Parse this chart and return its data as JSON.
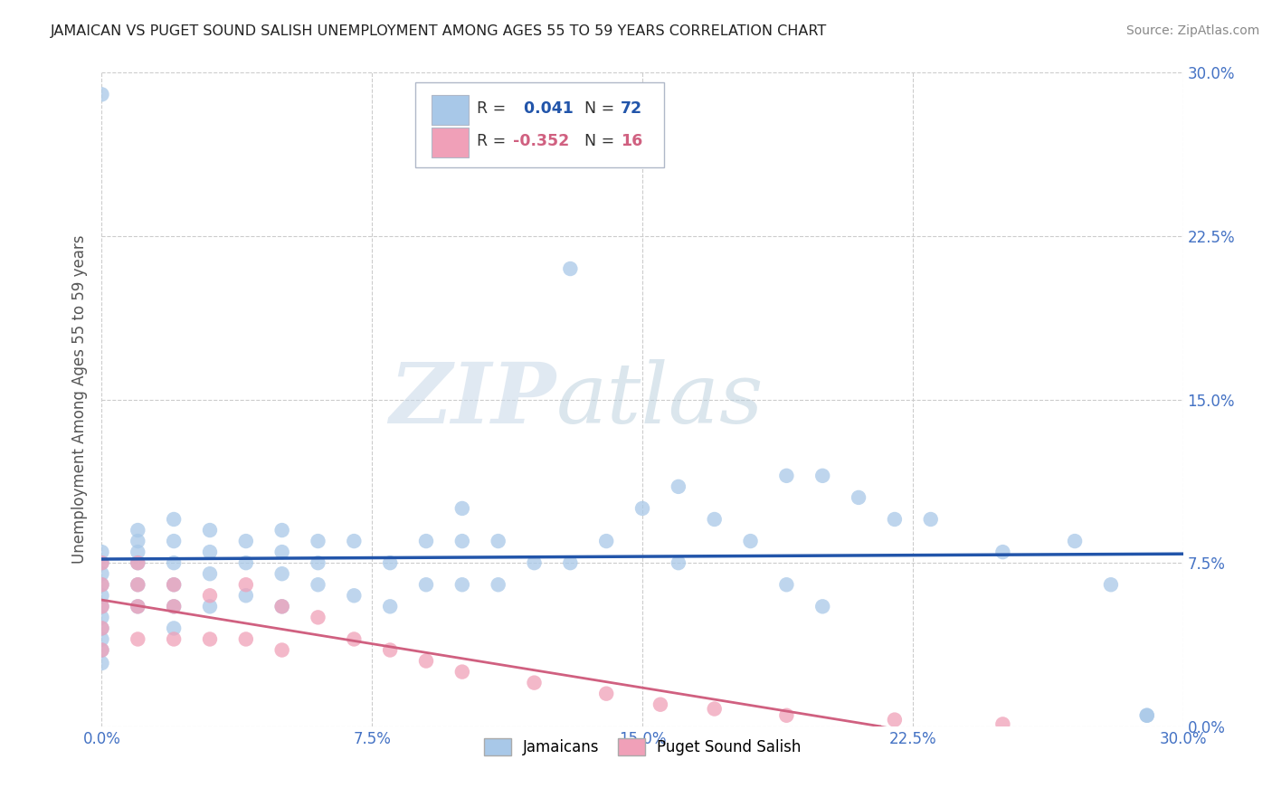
{
  "title": "JAMAICAN VS PUGET SOUND SALISH UNEMPLOYMENT AMONG AGES 55 TO 59 YEARS CORRELATION CHART",
  "source_text": "Source: ZipAtlas.com",
  "ylabel": "Unemployment Among Ages 55 to 59 years",
  "xlim": [
    0.0,
    0.3
  ],
  "ylim": [
    0.0,
    0.3
  ],
  "xticks": [
    0.0,
    0.075,
    0.15,
    0.225,
    0.3
  ],
  "xtick_labels": [
    "0.0%",
    "7.5%",
    "15.0%",
    "22.5%",
    "30.0%"
  ],
  "yticks": [
    0.0,
    0.075,
    0.15,
    0.225,
    0.3
  ],
  "ytick_labels": [
    "0.0%",
    "7.5%",
    "15.0%",
    "22.5%",
    "30.0%"
  ],
  "color_blue": "#a8c8e8",
  "color_pink": "#f0a0b8",
  "line_blue": "#2255aa",
  "line_pink": "#d06080",
  "watermark_zip": "ZIP",
  "watermark_atlas": "atlas",
  "background_color": "#ffffff",
  "jamaicans_x": [
    0.0,
    0.0,
    0.0,
    0.0,
    0.0,
    0.0,
    0.0,
    0.0,
    0.0,
    0.0,
    0.0,
    0.0,
    0.01,
    0.01,
    0.01,
    0.01,
    0.01,
    0.01,
    0.02,
    0.02,
    0.02,
    0.02,
    0.02,
    0.02,
    0.03,
    0.03,
    0.03,
    0.03,
    0.04,
    0.04,
    0.04,
    0.05,
    0.05,
    0.05,
    0.05,
    0.06,
    0.06,
    0.06,
    0.07,
    0.07,
    0.08,
    0.08,
    0.09,
    0.09,
    0.1,
    0.1,
    0.1,
    0.11,
    0.11,
    0.12,
    0.13,
    0.13,
    0.14,
    0.15,
    0.16,
    0.16,
    0.17,
    0.18,
    0.19,
    0.19,
    0.2,
    0.2,
    0.21,
    0.22,
    0.23,
    0.25,
    0.27,
    0.28,
    0.29,
    0.29
  ],
  "jamaicans_y": [
    0.08,
    0.075,
    0.07,
    0.065,
    0.06,
    0.055,
    0.05,
    0.045,
    0.04,
    0.035,
    0.029,
    0.29,
    0.09,
    0.085,
    0.08,
    0.075,
    0.065,
    0.055,
    0.095,
    0.085,
    0.075,
    0.065,
    0.055,
    0.045,
    0.09,
    0.08,
    0.07,
    0.055,
    0.085,
    0.075,
    0.06,
    0.09,
    0.08,
    0.07,
    0.055,
    0.085,
    0.075,
    0.065,
    0.085,
    0.06,
    0.075,
    0.055,
    0.085,
    0.065,
    0.1,
    0.085,
    0.065,
    0.085,
    0.065,
    0.075,
    0.21,
    0.075,
    0.085,
    0.1,
    0.11,
    0.075,
    0.095,
    0.085,
    0.115,
    0.065,
    0.115,
    0.055,
    0.105,
    0.095,
    0.095,
    0.08,
    0.085,
    0.065,
    0.005,
    0.005
  ],
  "salish_x": [
    0.0,
    0.0,
    0.0,
    0.0,
    0.0,
    0.01,
    0.01,
    0.01,
    0.01,
    0.02,
    0.02,
    0.02,
    0.03,
    0.03,
    0.04,
    0.04,
    0.05,
    0.05,
    0.06,
    0.07,
    0.08,
    0.09,
    0.1,
    0.12,
    0.14,
    0.155,
    0.17,
    0.19,
    0.22,
    0.25
  ],
  "salish_y": [
    0.075,
    0.065,
    0.055,
    0.045,
    0.035,
    0.075,
    0.065,
    0.055,
    0.04,
    0.065,
    0.055,
    0.04,
    0.06,
    0.04,
    0.065,
    0.04,
    0.055,
    0.035,
    0.05,
    0.04,
    0.035,
    0.03,
    0.025,
    0.02,
    0.015,
    0.01,
    0.008,
    0.005,
    0.003,
    0.001
  ]
}
